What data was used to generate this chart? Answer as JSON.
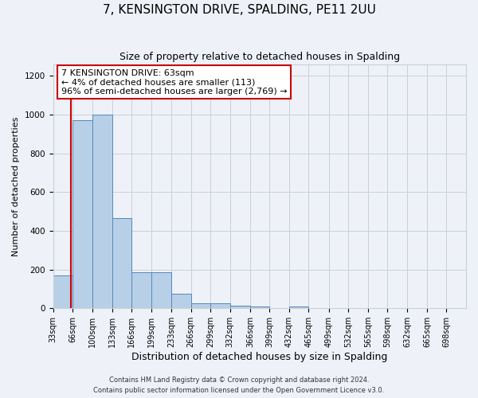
{
  "title": "7, KENSINGTON DRIVE, SPALDING, PE11 2UU",
  "subtitle": "Size of property relative to detached houses in Spalding",
  "xlabel": "Distribution of detached houses by size in Spalding",
  "ylabel": "Number of detached properties",
  "bar_labels": [
    "33sqm",
    "66sqm",
    "100sqm",
    "133sqm",
    "166sqm",
    "199sqm",
    "233sqm",
    "266sqm",
    "299sqm",
    "332sqm",
    "366sqm",
    "399sqm",
    "432sqm",
    "465sqm",
    "499sqm",
    "532sqm",
    "565sqm",
    "598sqm",
    "632sqm",
    "665sqm",
    "698sqm"
  ],
  "bar_left_edges": [
    33,
    66,
    100,
    133,
    166,
    199,
    233,
    266,
    299,
    332,
    366,
    399,
    432,
    465,
    499,
    532,
    565,
    598,
    632,
    665,
    698
  ],
  "bar_right_edges": [
    66,
    100,
    133,
    166,
    199,
    233,
    266,
    299,
    332,
    366,
    399,
    432,
    465,
    499,
    532,
    565,
    598,
    632,
    665,
    698,
    731
  ],
  "bar_values": [
    170,
    970,
    1000,
    465,
    185,
    185,
    75,
    28,
    28,
    15,
    10,
    0,
    10,
    0,
    0,
    0,
    0,
    0,
    0,
    0,
    0
  ],
  "bar_color": "#b8cfe8",
  "bar_edge_color": "#5588bb",
  "ylim": [
    0,
    1260
  ],
  "xlim": [
    33,
    731
  ],
  "yticks": [
    0,
    200,
    400,
    600,
    800,
    1000,
    1200
  ],
  "red_line_x": 63,
  "red_line_color": "#cc0000",
  "annotation_title": "7 KENSINGTON DRIVE: 63sqm",
  "annotation_line1": "← 4% of detached houses are smaller (113)",
  "annotation_line2": "96% of semi-detached houses are larger (2,769) →",
  "annotation_box_color": "#ffffff",
  "annotation_box_edge": "#cc0000",
  "footer_line1": "Contains HM Land Registry data © Crown copyright and database right 2024.",
  "footer_line2": "Contains public sector information licensed under the Open Government Licence v3.0.",
  "bg_color": "#eef2f8",
  "grid_color": "#c8cfd8",
  "title_fontsize": 11,
  "subtitle_fontsize": 9,
  "ylabel_fontsize": 8,
  "xlabel_fontsize": 9,
  "tick_fontsize": 7,
  "footer_fontsize": 6
}
